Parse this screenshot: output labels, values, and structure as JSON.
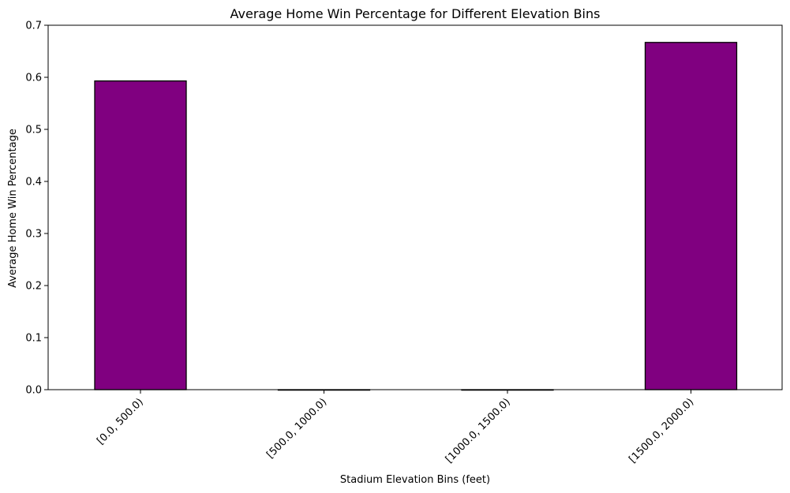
{
  "chart_data": {
    "type": "bar",
    "title": "Average Home Win Percentage for Different Elevation Bins",
    "xlabel": "Stadium Elevation Bins (feet)",
    "ylabel": "Average Home Win Percentage",
    "categories": [
      "[0.0, 500.0)",
      "[500.0, 1000.0)",
      "[1000.0, 1500.0)",
      "[1500.0, 2000.0)"
    ],
    "values": [
      0.593,
      0.0,
      0.0,
      0.667
    ],
    "ylim": [
      0,
      0.7
    ],
    "yticks": [
      "0.0",
      "0.1",
      "0.2",
      "0.3",
      "0.4",
      "0.5",
      "0.6",
      "0.7"
    ],
    "bar_color": "#800080",
    "grid": false,
    "legend": "none"
  }
}
